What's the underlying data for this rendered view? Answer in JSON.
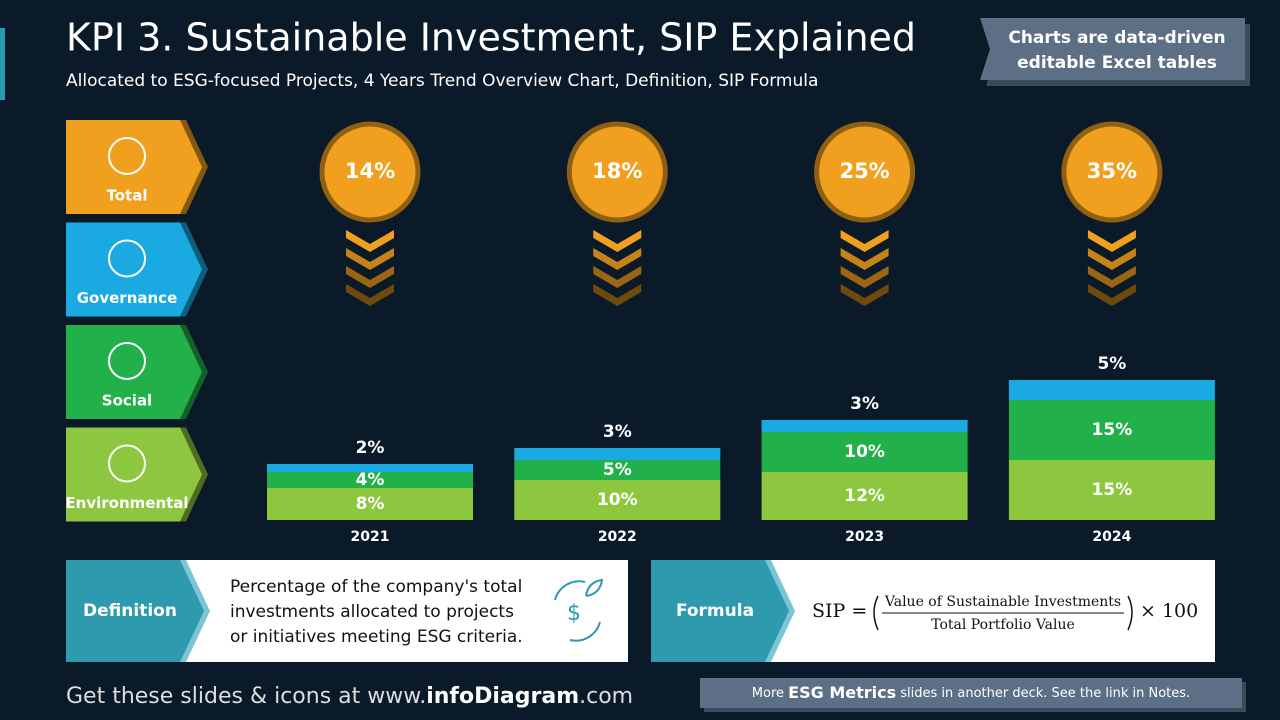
{
  "header": {
    "title": "KPI 3. Sustainable Investment, SIP Explained",
    "subtitle": "Allocated to ESG-focused Projects, 4 Years Trend Overview Chart, Definition, SIP Formula",
    "banner": [
      "Charts are data-driven",
      "editable Excel tables"
    ]
  },
  "chart_data": {
    "type": "stacked-bar",
    "categories": [
      "2021",
      "2022",
      "2023",
      "2024"
    ],
    "total_label": "Total",
    "totals": [
      14,
      18,
      25,
      35
    ],
    "totals_labels": [
      "14%",
      "18%",
      "25%",
      "35%"
    ],
    "series": [
      {
        "name": "Environmental",
        "color": "#8dc63f",
        "values": [
          8,
          10,
          12,
          15
        ],
        "value_labels": [
          "8%",
          "10%",
          "12%",
          "15%"
        ]
      },
      {
        "name": "Social",
        "color": "#22b04b",
        "values": [
          4,
          5,
          10,
          15
        ],
        "value_labels": [
          "4%",
          "5%",
          "10%",
          "15%"
        ]
      },
      {
        "name": "Governance",
        "color": "#1aa9e1",
        "values": [
          2,
          3,
          3,
          5
        ],
        "value_labels": [
          "2%",
          "3%",
          "3%",
          "5%"
        ]
      }
    ],
    "total_color": "#f0a01e"
  },
  "definition": {
    "label": "Definition",
    "text": [
      "Percentage of the company's total",
      "investments allocated to projects",
      "or initiatives meeting ESG criteria."
    ]
  },
  "formula": {
    "label": "Formula",
    "lhs": "SIP =",
    "numerator": "Value of Sustainable Investments",
    "denominator": "Total Portfolio Value",
    "multiplier": "× 100"
  },
  "footer": {
    "left": [
      "Get these slides & icons at www.",
      "infoDiagram",
      ".com"
    ],
    "right": [
      "More ",
      "ESG Metrics",
      " slides in another deck. See the link in Notes."
    ]
  }
}
